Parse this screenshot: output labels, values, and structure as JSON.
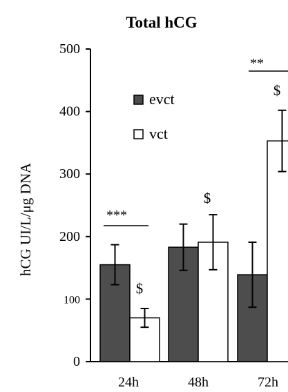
{
  "chart_data": {
    "type": "bar",
    "title": "Total hCG",
    "ylabel": "hCG UI/L/μg DNA",
    "xlabel": "",
    "ylim": [
      0,
      500
    ],
    "yticks": [
      "0",
      "100",
      "200",
      "300",
      "400",
      "500"
    ],
    "categories": [
      "24h",
      "48h",
      "72h"
    ],
    "series": [
      {
        "name": "evct",
        "color": "#4d4d4d",
        "values": [
          155,
          183,
          139
        ],
        "errors": [
          32,
          37,
          52
        ]
      },
      {
        "name": "vct",
        "color": "#ffffff",
        "values": [
          70,
          191,
          353
        ],
        "errors": [
          15,
          44,
          49
        ]
      }
    ],
    "legend": {
      "position": "top-left",
      "labels": [
        "evct",
        "vct"
      ]
    },
    "annotations": {
      "dollar_marks": [
        "$",
        "$",
        "$"
      ],
      "significance": [
        "***",
        "**"
      ]
    }
  }
}
